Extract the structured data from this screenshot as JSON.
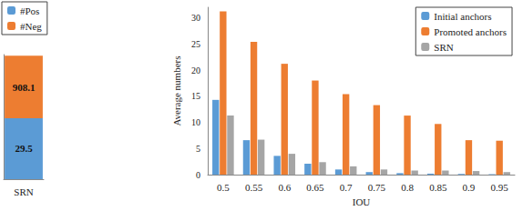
{
  "chart_data": [
    {
      "type": "bar",
      "categories": [
        "SRN"
      ],
      "series": [
        {
          "name": "#Pos",
          "color": "#5b9bd5",
          "values": [
            29.5
          ]
        },
        {
          "name": "#Neg",
          "color": "#ed7d31",
          "values": [
            908.1
          ]
        }
      ],
      "stacked": true,
      "data_labels": true,
      "log": "y",
      "ylim": [
        1,
        1000
      ],
      "tick_labels": "x",
      "legend": "upper left",
      "grid": false
    },
    {
      "type": "bar",
      "x_label": "IOU",
      "y_label": "Average numbers",
      "categories": [
        "0.5",
        "0.55",
        "0.6",
        "0.65",
        "0.7",
        "0.75",
        "0.8",
        "0.85",
        "0.9",
        "0.95"
      ],
      "series": [
        {
          "name": "Initial anchors",
          "color": "#5b9bd5",
          "values": [
            14.3,
            6.6,
            3.6,
            2.1,
            1.0,
            0.5,
            0.3,
            0.2,
            0.15,
            0.1
          ]
        },
        {
          "name": "Promoted anchors",
          "color": "#ed7d31",
          "values": [
            31.2,
            25.4,
            21.2,
            18.0,
            15.4,
            13.3,
            11.3,
            9.7,
            6.6,
            6.5
          ]
        },
        {
          "name": "SRN",
          "color": "#a5a5a5",
          "values": [
            11.3,
            6.7,
            4.0,
            2.4,
            1.6,
            1.0,
            0.8,
            0.8,
            0.7,
            0.5
          ]
        }
      ],
      "ylim": [
        0,
        32
      ],
      "yticks": [
        0,
        5,
        10,
        15,
        20,
        25,
        30
      ],
      "legend": "upper right",
      "grid": false
    }
  ]
}
